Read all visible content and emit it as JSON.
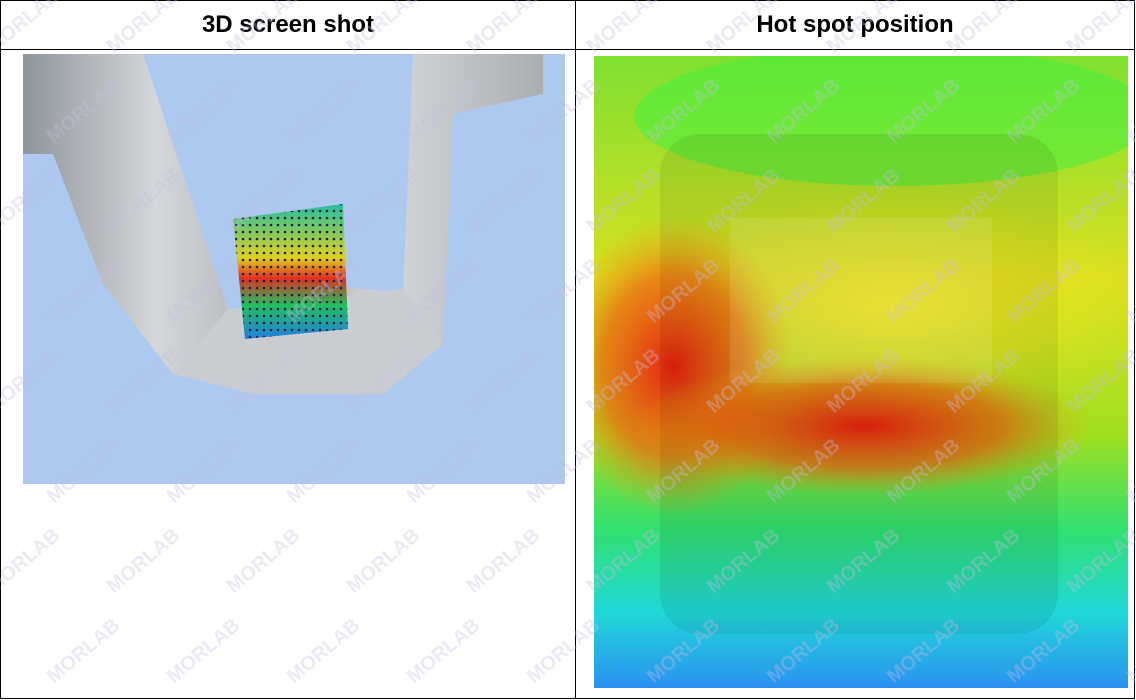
{
  "table": {
    "headers": [
      "3D screen shot",
      "Hot spot position"
    ]
  },
  "watermark": "MORLAB"
}
